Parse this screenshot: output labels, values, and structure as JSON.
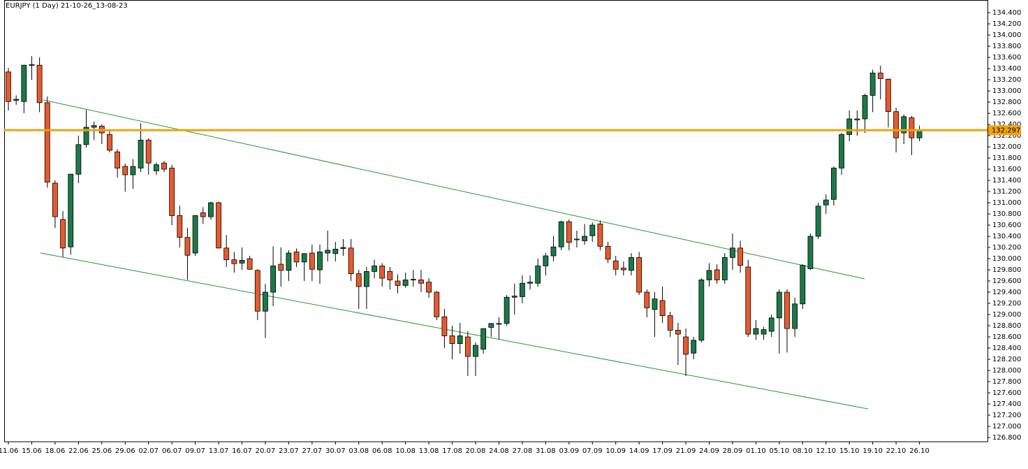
{
  "chart_data": {
    "type": "candlestick",
    "title": "EURJPY (1 Day) 21-10-26_13-08-23",
    "categories": [
      "11.06",
      null,
      null,
      "15.06",
      null,
      null,
      "18.06",
      null,
      null,
      "22.06",
      null,
      null,
      "25.06",
      null,
      null,
      "29.06",
      null,
      null,
      "02.07",
      null,
      null,
      "06.07",
      null,
      null,
      "09.07",
      null,
      null,
      "13.07",
      null,
      null,
      "16.07",
      null,
      null,
      "20.07",
      null,
      null,
      "23.07",
      null,
      null,
      "27.07",
      null,
      null,
      "30.07",
      null,
      null,
      "03.08",
      null,
      null,
      "06.08",
      null,
      null,
      "10.08",
      null,
      null,
      "13.08",
      null,
      null,
      "17.08",
      null,
      null,
      "20.08",
      null,
      null,
      "24.08",
      null,
      null,
      "27.08",
      null,
      null,
      "31.08",
      null,
      null,
      "03.09",
      null,
      null,
      "07.09",
      null,
      null,
      "10.09",
      null,
      null,
      "14.09",
      null,
      null,
      "17.09",
      null,
      null,
      "21.09",
      null,
      null,
      "24.09",
      null,
      null,
      "28.09",
      null,
      null,
      "01.10",
      null,
      null,
      "05.10",
      null,
      null,
      "08.10",
      null,
      null,
      "12.10",
      null,
      null,
      "15.10",
      null,
      null,
      "19.10",
      null,
      null,
      "22.10",
      null,
      null,
      "26.10"
    ],
    "open": [
      133.34,
      132.83,
      132.81,
      133.46,
      133.46,
      132.79,
      131.35,
      130.7,
      130.21,
      131.51,
      132.04,
      132.35,
      132.37,
      132.22,
      131.91,
      131.65,
      131.5,
      131.62,
      132.12,
      131.57,
      131.71,
      131.62,
      130.77,
      130.38,
      130.1,
      130.82,
      130.75,
      131.0,
      130.19,
      129.98,
      129.92,
      130.0,
      129.79,
      129.06,
      129.4,
      129.9,
      129.79,
      130.12,
      129.94,
      130.1,
      129.8,
      130.1,
      130.09,
      130.18,
      130.19,
      129.73,
      129.5,
      129.77,
      129.87,
      129.77,
      129.6,
      129.52,
      129.63,
      129.62,
      129.58,
      129.4,
      128.96,
      128.62,
      128.48,
      128.6,
      128.25,
      128.38,
      128.77,
      128.83,
      128.84,
      129.31,
      129.32,
      129.56,
      129.56,
      129.87,
      130.05,
      130.21,
      130.66,
      130.35,
      130.32,
      130.41,
      130.62,
      130.22,
      129.96,
      129.83,
      129.79,
      130.02,
      129.4,
      129.09,
      129.25,
      128.98,
      128.72,
      128.6,
      128.31,
      128.54,
      129.62,
      129.8,
      129.62,
      130.02,
      130.19,
      129.85,
      128.65,
      128.65,
      128.7,
      128.94,
      129.4,
      128.75,
      129.19,
      129.82,
      130.4,
      130.96,
      131.06,
      131.62,
      132.22,
      132.5,
      132.5,
      132.92,
      133.32,
      133.21,
      132.63,
      132.25,
      132.52,
      132.16
    ],
    "high": [
      133.41,
      132.92,
      133.47,
      133.62,
      133.6,
      132.9,
      131.4,
      130.85,
      131.52,
      132.2,
      132.66,
      132.45,
      132.4,
      132.3,
      131.96,
      131.7,
      131.78,
      132.42,
      132.15,
      131.72,
      131.75,
      131.68,
      130.95,
      130.55,
      130.78,
      130.92,
      131.02,
      131.02,
      130.42,
      130.12,
      130.2,
      130.05,
      129.81,
      129.55,
      130.22,
      130.2,
      130.15,
      130.18,
      130.1,
      130.25,
      130.25,
      130.5,
      130.3,
      130.35,
      130.35,
      129.8,
      129.85,
      129.98,
      129.92,
      129.85,
      129.72,
      129.75,
      129.8,
      129.8,
      129.65,
      129.42,
      129.1,
      128.8,
      128.85,
      128.7,
      128.5,
      128.75,
      128.85,
      128.95,
      129.35,
      129.55,
      129.7,
      129.7,
      130.0,
      130.1,
      130.4,
      130.68,
      130.7,
      130.5,
      130.62,
      130.65,
      130.68,
      130.3,
      130.05,
      129.95,
      130.1,
      130.12,
      129.45,
      129.4,
      129.5,
      129.05,
      128.85,
      128.75,
      128.6,
      129.65,
      129.92,
      129.9,
      130.1,
      130.45,
      130.32,
      129.98,
      128.9,
      128.78,
      129.0,
      129.45,
      129.45,
      129.3,
      129.9,
      130.45,
      131.0,
      131.15,
      131.65,
      132.25,
      132.65,
      132.65,
      132.95,
      133.38,
      133.45,
      133.22,
      132.7,
      132.58,
      132.55,
      132.38
    ],
    "low": [
      132.65,
      132.75,
      132.6,
      133.2,
      132.62,
      131.27,
      130.55,
      130.03,
      130.07,
      131.35,
      131.99,
      132.12,
      132.05,
      131.9,
      131.45,
      131.2,
      131.25,
      131.55,
      131.5,
      131.5,
      131.55,
      130.6,
      130.2,
      129.62,
      130.05,
      130.62,
      130.7,
      130.18,
      129.85,
      129.75,
      129.8,
      129.8,
      128.9,
      128.58,
      129.15,
      129.5,
      129.6,
      129.85,
      129.6,
      129.6,
      129.55,
      129.95,
      129.95,
      130.05,
      129.6,
      129.1,
      129.1,
      129.65,
      129.5,
      129.45,
      129.38,
      129.48,
      129.5,
      129.4,
      129.3,
      128.9,
      128.4,
      128.2,
      128.3,
      127.9,
      127.9,
      128.3,
      128.6,
      128.55,
      128.8,
      129.0,
      129.2,
      129.45,
      129.5,
      129.7,
      129.95,
      130.15,
      130.15,
      130.2,
      130.25,
      130.3,
      130.15,
      129.92,
      129.7,
      129.7,
      129.7,
      129.35,
      128.95,
      128.6,
      128.85,
      128.6,
      128.1,
      127.9,
      128.2,
      128.5,
      129.5,
      129.55,
      129.55,
      129.8,
      129.75,
      128.6,
      128.55,
      128.55,
      128.6,
      128.3,
      128.32,
      128.6,
      129.1,
      129.8,
      130.35,
      130.8,
      130.95,
      131.5,
      132.1,
      132.2,
      132.25,
      132.62,
      132.85,
      132.35,
      131.9,
      132.05,
      131.85,
      132.1
    ],
    "close": [
      132.81,
      132.85,
      133.46,
      133.47,
      132.79,
      131.37,
      130.75,
      130.19,
      131.51,
      132.04,
      132.35,
      132.38,
      132.25,
      131.94,
      131.62,
      131.5,
      131.65,
      132.12,
      131.71,
      131.68,
      131.6,
      130.77,
      130.38,
      130.06,
      130.77,
      130.75,
      131.0,
      130.19,
      129.98,
      129.91,
      129.97,
      129.81,
      129.06,
      129.4,
      129.87,
      129.79,
      130.1,
      129.94,
      130.09,
      129.81,
      130.12,
      130.15,
      130.17,
      130.2,
      129.73,
      129.5,
      129.77,
      129.87,
      129.65,
      129.62,
      129.52,
      129.62,
      129.62,
      129.56,
      129.4,
      128.96,
      128.62,
      128.48,
      128.62,
      128.25,
      128.45,
      128.75,
      128.84,
      128.84,
      129.31,
      129.33,
      129.56,
      129.58,
      129.87,
      130.05,
      130.21,
      130.66,
      130.29,
      130.34,
      130.4,
      130.6,
      130.22,
      129.99,
      129.81,
      129.8,
      130.02,
      129.4,
      129.12,
      129.28,
      128.98,
      128.72,
      128.65,
      128.29,
      128.54,
      129.62,
      129.79,
      129.62,
      130.02,
      130.19,
      129.88,
      128.65,
      128.75,
      128.73,
      128.94,
      129.4,
      128.75,
      129.19,
      129.88,
      130.4,
      130.94,
      131.05,
      131.62,
      132.22,
      132.5,
      132.48,
      132.92,
      133.32,
      133.22,
      132.63,
      132.16,
      132.54,
      132.16,
      132.3
    ],
    "up_color": "#1b7a46",
    "down_color": "#e85a2c",
    "current_price": 132.297,
    "current_price_color": "#f2a20c",
    "ylim": [
      126.725,
      134.62
    ],
    "yticks": [
      {
        "value": 134.4,
        "label": "134.400"
      },
      {
        "value": 134.2,
        "label": "134.200"
      },
      {
        "value": 134.0,
        "label": "134.000"
      },
      {
        "value": 133.8,
        "label": "133.800"
      },
      {
        "value": 133.6,
        "label": "133.600"
      },
      {
        "value": 133.4,
        "label": "133.400"
      },
      {
        "value": 133.2,
        "label": "133.200"
      },
      {
        "value": 133.0,
        "label": "133.000"
      },
      {
        "value": 132.8,
        "label": "132.800"
      },
      {
        "value": 132.6,
        "label": "132.600"
      },
      {
        "value": 132.4,
        "label": "132.400"
      },
      {
        "value": 132.2,
        "label": "132.200"
      },
      {
        "value": 132.0,
        "label": "132.000"
      },
      {
        "value": 131.8,
        "label": "131.800"
      },
      {
        "value": 131.6,
        "label": "131.600"
      },
      {
        "value": 131.4,
        "label": "131.400"
      },
      {
        "value": 131.2,
        "label": "131.200"
      },
      {
        "value": 131.0,
        "label": "131.000"
      },
      {
        "value": 130.8,
        "label": "130.800"
      },
      {
        "value": 130.6,
        "label": "130.600"
      },
      {
        "value": 130.4,
        "label": "130.400"
      },
      {
        "value": 130.2,
        "label": "130.200"
      },
      {
        "value": 130.0,
        "label": "130.000"
      },
      {
        "value": 129.8,
        "label": "129.800"
      },
      {
        "value": 129.6,
        "label": "129.600"
      },
      {
        "value": 129.4,
        "label": "129.400"
      },
      {
        "value": 129.2,
        "label": "129.200"
      },
      {
        "value": 129.0,
        "label": "129.000"
      },
      {
        "value": 128.8,
        "label": "128.800"
      },
      {
        "value": 128.6,
        "label": "128.600"
      },
      {
        "value": 128.4,
        "label": "128.400"
      },
      {
        "value": 128.2,
        "label": "128.200"
      },
      {
        "value": 128.0,
        "label": "128.000"
      },
      {
        "value": 127.8,
        "label": "127.800"
      },
      {
        "value": 127.6,
        "label": "127.600"
      },
      {
        "value": 127.4,
        "label": "127.400"
      },
      {
        "value": 127.2,
        "label": "127.200"
      },
      {
        "value": 127.0,
        "label": "127.000"
      },
      {
        "value": 126.8,
        "label": "126.800"
      }
    ],
    "grid": false
  }
}
